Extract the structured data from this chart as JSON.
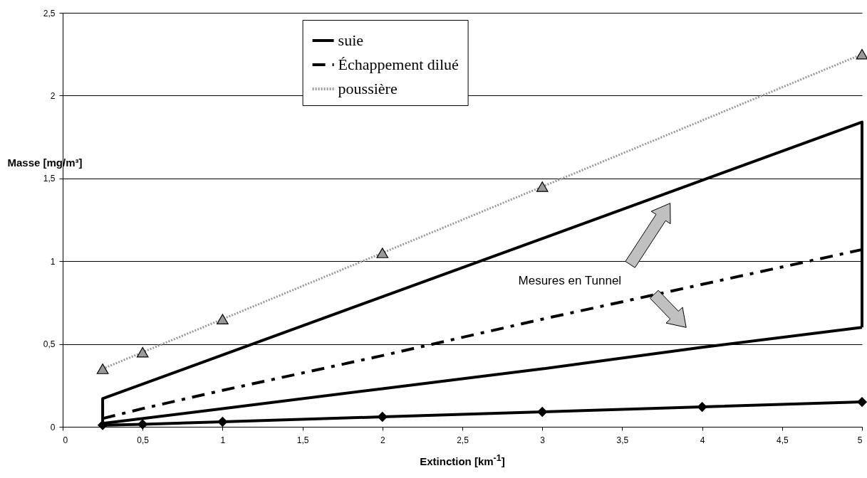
{
  "chart_data": {
    "type": "line",
    "xlabel": "Extinction [km$^{-1}$]",
    "ylabel": "Masse [mg/m³]",
    "xlim": [
      0,
      5
    ],
    "ylim": [
      0,
      2.5
    ],
    "xticks": [
      0,
      {
        "value": 0.5,
        "label": "0,5"
      },
      1,
      {
        "value": 1.5,
        "label": "1,5"
      },
      2,
      {
        "value": 2.5,
        "label": "2,5"
      },
      3,
      {
        "value": 3.5,
        "label": "3,5"
      },
      4,
      {
        "value": 4.5,
        "label": "4,5"
      },
      5
    ],
    "yticks": [
      0,
      {
        "value": 0.5,
        "label": "0,5"
      },
      1,
      {
        "value": 1.5,
        "label": "1,5"
      },
      2,
      {
        "value": 2.5,
        "label": "2,5"
      }
    ],
    "grid": "y",
    "legend": "top",
    "annotations": [
      "Mesures en Tunnel"
    ],
    "series": [
      {
        "name": "suie",
        "color": "#000000",
        "marker": "diamond",
        "line_style": "solid",
        "x": [
          0.25,
          0.5,
          1,
          2,
          3,
          4,
          5
        ],
        "values": [
          0.01,
          0.015,
          0.03,
          0.06,
          0.09,
          0.12,
          0.15
        ]
      },
      {
        "name": "Échappement dilué",
        "color": "#000000",
        "marker": "none",
        "line_style": "dashed",
        "x": [
          0.25,
          0.5,
          1,
          2,
          3,
          4,
          5
        ],
        "values": [
          0.05,
          0.11,
          0.22,
          0.43,
          0.65,
          0.86,
          1.07
        ]
      },
      {
        "name": "poussière",
        "color": "#999999",
        "marker": "triangle",
        "line_style": "dotted",
        "x": [
          0.25,
          0.5,
          1,
          2,
          3,
          5
        ],
        "values": [
          0.35,
          0.45,
          0.65,
          1.05,
          1.45,
          2.25
        ]
      },
      {
        "color": "#000000",
        "marker": "none",
        "line_style": "solid",
        "x": [
          0.25,
          1,
          2,
          3,
          4,
          5
        ],
        "values": [
          0.02,
          0.11,
          0.23,
          0.35,
          0.48,
          0.6
        ]
      },
      {
        "color": "#000000",
        "marker": "none",
        "line_style": "solid",
        "x": [
          0.25,
          0.25,
          5,
          5
        ],
        "values": [
          0.02,
          0.17,
          1.84,
          0.6
        ]
      }
    ]
  }
}
